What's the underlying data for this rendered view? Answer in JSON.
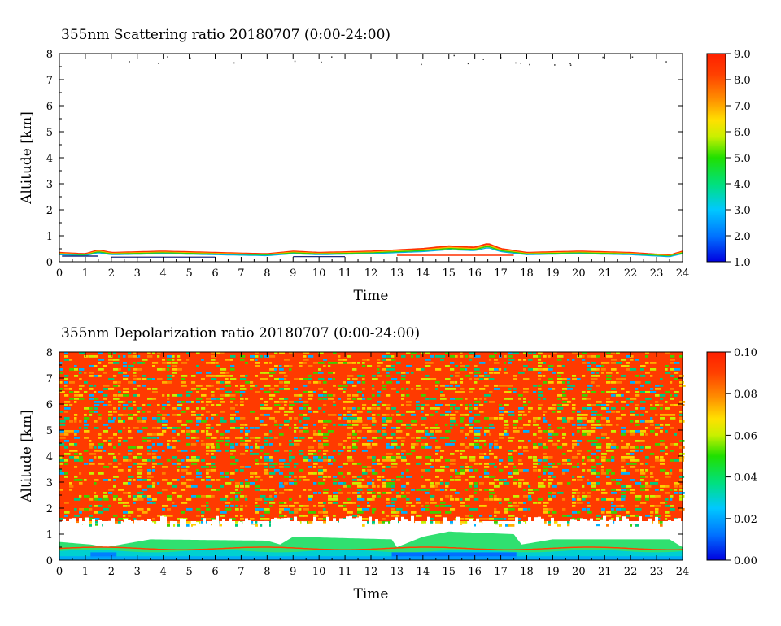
{
  "chart_data": [
    {
      "type": "heatmap",
      "title": "355nm Scattering ratio  20180707 (0:00-24:00)",
      "xlabel": "Time",
      "ylabel": "Altitude [km]",
      "xlim": [
        0,
        24
      ],
      "ylim": [
        0,
        8
      ],
      "x_ticks": [
        "0",
        "1",
        "2",
        "3",
        "4",
        "5",
        "6",
        "7",
        "8",
        "9",
        "10",
        "11",
        "12",
        "13",
        "14",
        "15",
        "16",
        "17",
        "18",
        "19",
        "20",
        "21",
        "22",
        "23",
        "24"
      ],
      "y_ticks": [
        "0",
        "1",
        "2",
        "3",
        "4",
        "5",
        "6",
        "7",
        "8"
      ],
      "colorbar": {
        "range": [
          1.0,
          9.0
        ],
        "tick_labels": [
          "1.0",
          "2.0",
          "3.0",
          "4.0",
          "5.0",
          "6.0",
          "7.0",
          "8.0",
          "9.0"
        ]
      },
      "layer_top_km": [
        {
          "time": 0,
          "alt": 0.35
        },
        {
          "time": 1,
          "alt": 0.3
        },
        {
          "time": 1.5,
          "alt": 0.45
        },
        {
          "time": 2,
          "alt": 0.35
        },
        {
          "time": 4,
          "alt": 0.4
        },
        {
          "time": 6,
          "alt": 0.35
        },
        {
          "time": 8,
          "alt": 0.3
        },
        {
          "time": 9,
          "alt": 0.4
        },
        {
          "time": 10,
          "alt": 0.35
        },
        {
          "time": 12,
          "alt": 0.4
        },
        {
          "time": 13,
          "alt": 0.45
        },
        {
          "time": 14,
          "alt": 0.5
        },
        {
          "time": 15,
          "alt": 0.6
        },
        {
          "time": 16,
          "alt": 0.55
        },
        {
          "time": 16.5,
          "alt": 0.7
        },
        {
          "time": 17,
          "alt": 0.5
        },
        {
          "time": 18,
          "alt": 0.35
        },
        {
          "time": 20,
          "alt": 0.4
        },
        {
          "time": 22,
          "alt": 0.35
        },
        {
          "time": 23.5,
          "alt": 0.25
        },
        {
          "time": 24,
          "alt": 0.4
        }
      ]
    },
    {
      "type": "heatmap",
      "title": "355nm Depolarization ratio  20180707 (0:00-24:00)",
      "xlabel": "Time",
      "ylabel": "Altitude [km]",
      "xlim": [
        0,
        24
      ],
      "ylim": [
        0,
        8
      ],
      "x_ticks": [
        "0",
        "1",
        "2",
        "3",
        "4",
        "5",
        "6",
        "7",
        "8",
        "9",
        "10",
        "11",
        "12",
        "13",
        "14",
        "15",
        "16",
        "17",
        "18",
        "19",
        "20",
        "21",
        "22",
        "23",
        "24"
      ],
      "y_ticks": [
        "0",
        "1",
        "2",
        "3",
        "4",
        "5",
        "6",
        "7",
        "8"
      ],
      "colorbar": {
        "range": [
          0.0,
          0.1
        ],
        "tick_labels": [
          "0.00",
          "0.02",
          "0.04",
          "0.06",
          "0.08",
          "0.10"
        ]
      },
      "low_depol_layer_top_km": [
        {
          "time": 0,
          "alt": 0.7
        },
        {
          "time": 1.2,
          "alt": 0.6
        },
        {
          "time": 1.8,
          "alt": 0.5
        },
        {
          "time": 3.5,
          "alt": 0.8
        },
        {
          "time": 8,
          "alt": 0.75
        },
        {
          "time": 8.5,
          "alt": 0.6
        },
        {
          "time": 9,
          "alt": 0.9
        },
        {
          "time": 12.8,
          "alt": 0.8
        },
        {
          "time": 13,
          "alt": 0.5
        },
        {
          "time": 14,
          "alt": 0.9
        },
        {
          "time": 15,
          "alt": 1.1
        },
        {
          "time": 17.5,
          "alt": 1.0
        },
        {
          "time": 17.8,
          "alt": 0.6
        },
        {
          "time": 19,
          "alt": 0.8
        },
        {
          "time": 23.5,
          "alt": 0.8
        },
        {
          "time": 24,
          "alt": 0.5
        }
      ]
    }
  ]
}
